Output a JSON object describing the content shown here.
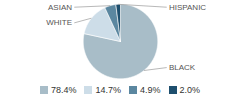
{
  "chart_data": {
    "type": "pie",
    "categories": [
      "BLACK",
      "WHITE",
      "ASIAN",
      "HISPANIC"
    ],
    "values": [
      78.4,
      14.7,
      4.9,
      2.0
    ],
    "value_labels": [
      "78.4%",
      "14.7%",
      "4.9%",
      "2.0%"
    ],
    "colors": [
      "#a8bdc8",
      "#cddde8",
      "#5b87a0",
      "#1e4f6e"
    ],
    "legend": "bottom"
  }
}
